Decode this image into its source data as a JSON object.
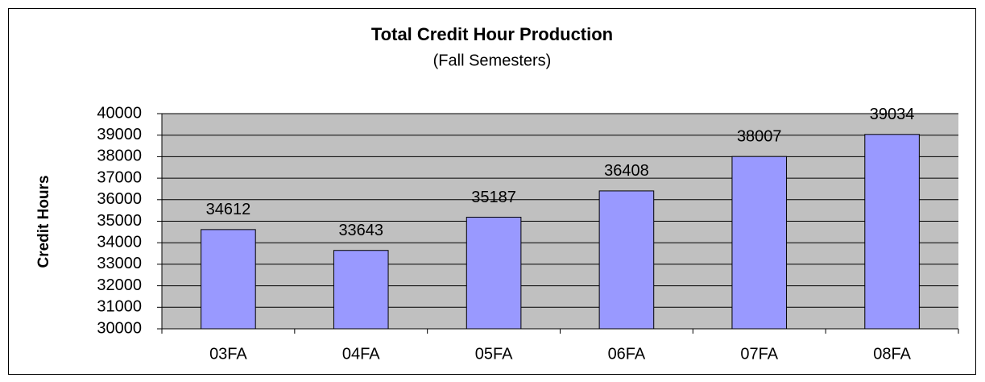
{
  "chart_data": {
    "type": "bar",
    "title": "Total Credit Hour Production",
    "subtitle": "(Fall Semesters)",
    "y_label": "Credit Hours",
    "categories": [
      "03FA",
      "04FA",
      "05FA",
      "06FA",
      "07FA",
      "08FA"
    ],
    "values": [
      34612,
      33643,
      35187,
      36408,
      38007,
      39034
    ],
    "color": "#9999ff",
    "ylim": [
      30000,
      40000
    ],
    "yticks": [
      30000,
      31000,
      32000,
      33000,
      34000,
      35000,
      36000,
      37000,
      38000,
      39000,
      40000
    ],
    "grid": true
  }
}
